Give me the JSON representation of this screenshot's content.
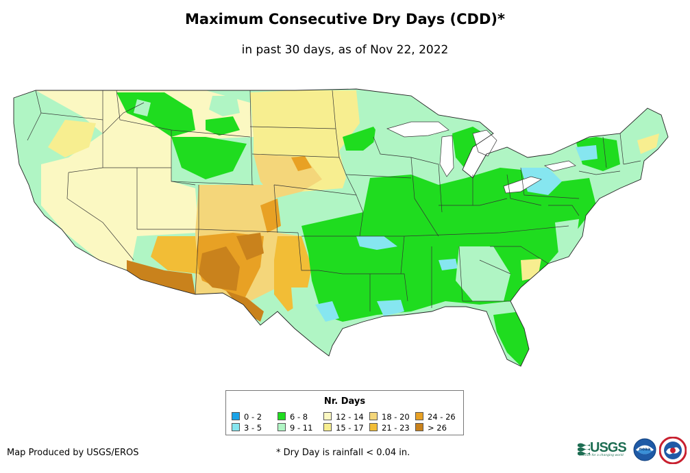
{
  "title": "Maximum Consecutive Dry Days (CDD)*",
  "subtitle": "in past 30 days, as of Nov 22, 2022",
  "legend": {
    "title": "Nr. Days",
    "items": [
      {
        "label": "0 - 2",
        "color": "#1aa3e8"
      },
      {
        "label": "3 - 5",
        "color": "#86e6f0"
      },
      {
        "label": "6 - 8",
        "color": "#1fdc1f"
      },
      {
        "label": "9 - 11",
        "color": "#b0f5c4"
      },
      {
        "label": "12 - 14",
        "color": "#fbf8c2"
      },
      {
        "label": "15 - 17",
        "color": "#f7ee90"
      },
      {
        "label": "18 - 20",
        "color": "#f4d67a"
      },
      {
        "label": "21 - 23",
        "color": "#f2bd36"
      },
      {
        "label": "24 - 26",
        "color": "#e8a124"
      },
      {
        "label": "> 26",
        "color": "#c9821c"
      }
    ]
  },
  "credit": "Map Produced by USGS/EROS",
  "footnote": "* Dry Day is rainfall < 0.04 in.",
  "logos": {
    "usgs": "USGS",
    "usgs_tagline": "science for a changing world",
    "noaa": "noaa"
  }
}
